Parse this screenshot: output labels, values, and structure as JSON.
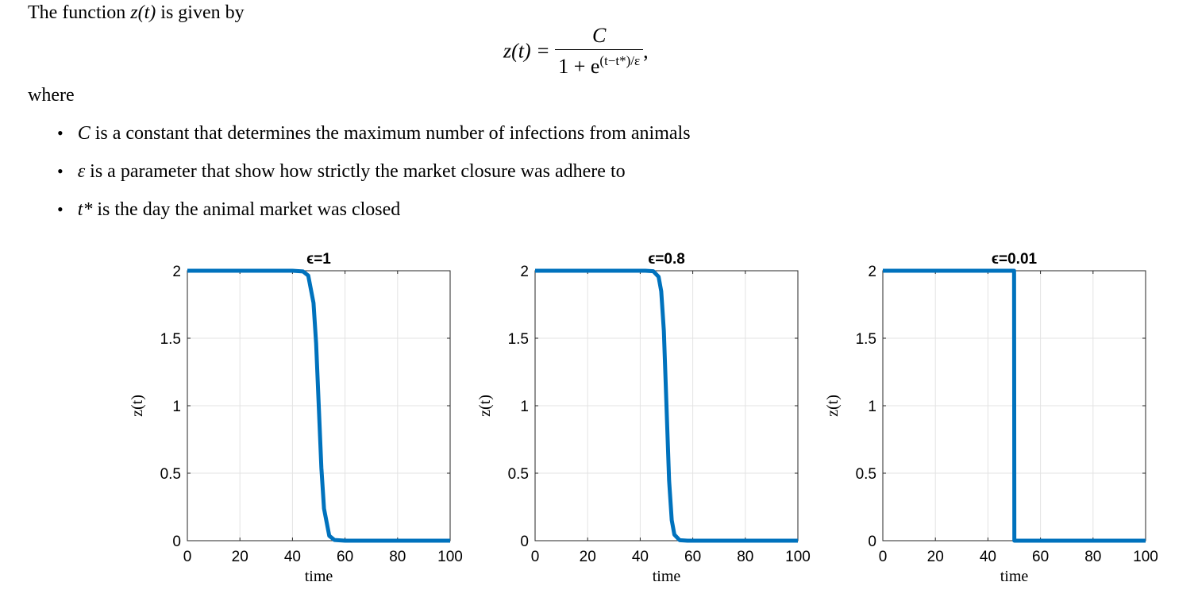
{
  "intro": {
    "prefix": "The function ",
    "fn": "z(t)",
    "suffix": " is given by"
  },
  "equation": {
    "lhs": "z(t) =",
    "numerator": "C",
    "denominator_base": "1 + e",
    "exponent": "(t−t*)/ε",
    "trailing": ","
  },
  "where_label": "where",
  "bullets": [
    {
      "symbol": "C",
      "text": " is a constant that determines the maximum number of infections from animals"
    },
    {
      "symbol": "ε",
      "text": " is a parameter that show how strictly the market closure was adhere to"
    },
    {
      "symbol": "t*",
      "text": " is the day the animal market was closed"
    }
  ],
  "colors": {
    "line": "#0072BD",
    "grid": "#e3e3e3",
    "axis": "#262626"
  },
  "chart_data": [
    {
      "type": "line",
      "title": "ϵ=1",
      "xlabel": "time",
      "ylabel": "z(t)",
      "xlim": [
        0,
        100
      ],
      "ylim": [
        0,
        2
      ],
      "xticks": [
        0,
        20,
        40,
        60,
        80,
        100
      ],
      "yticks": [
        0,
        0.5,
        1,
        1.5,
        2
      ],
      "ytick_labels": [
        "0",
        "0.5",
        "1",
        "1.5",
        "2"
      ],
      "grid": true,
      "legend": "none",
      "C": 2,
      "t_star": 50,
      "epsilon": 1,
      "series": [
        {
          "x": [
            0,
            40,
            44,
            46,
            48,
            49,
            50,
            51,
            52,
            54,
            56,
            60,
            100
          ],
          "y": [
            2,
            2,
            1.995,
            1.964,
            1.762,
            1.462,
            1.0,
            0.538,
            0.238,
            0.036,
            0.005,
            0,
            0
          ]
        }
      ]
    },
    {
      "type": "line",
      "title": "ϵ=0.8",
      "xlabel": "time",
      "ylabel": "z(t)",
      "xlim": [
        0,
        100
      ],
      "ylim": [
        0,
        2
      ],
      "xticks": [
        0,
        20,
        40,
        60,
        80,
        100
      ],
      "yticks": [
        0,
        0.5,
        1,
        1.5,
        2
      ],
      "ytick_labels": [
        "0",
        "0.5",
        "1",
        "1.5",
        "2"
      ],
      "grid": true,
      "legend": "none",
      "C": 2,
      "t_star": 50,
      "epsilon": 0.8,
      "series": [
        {
          "x": [
            0,
            42,
            45,
            47,
            48,
            49,
            50,
            51,
            52,
            53,
            55,
            58,
            100
          ],
          "y": [
            2,
            2,
            1.996,
            1.955,
            1.848,
            1.555,
            1.0,
            0.445,
            0.152,
            0.045,
            0.004,
            0,
            0
          ]
        }
      ]
    },
    {
      "type": "line",
      "title": "ϵ=0.01",
      "xlabel": "time",
      "ylabel": "z(t)",
      "xlim": [
        0,
        100
      ],
      "ylim": [
        0,
        2
      ],
      "xticks": [
        0,
        20,
        40,
        60,
        80,
        100
      ],
      "yticks": [
        0,
        0.5,
        1,
        1.5,
        2
      ],
      "ytick_labels": [
        "0",
        "0.5",
        "1",
        "1.5",
        "2"
      ],
      "grid": true,
      "legend": "none",
      "C": 2,
      "t_star": 50,
      "epsilon": 0.01,
      "series": [
        {
          "x": [
            0,
            49.95,
            50,
            50.05,
            100
          ],
          "y": [
            2,
            2,
            1.0,
            0,
            0
          ]
        }
      ]
    }
  ]
}
